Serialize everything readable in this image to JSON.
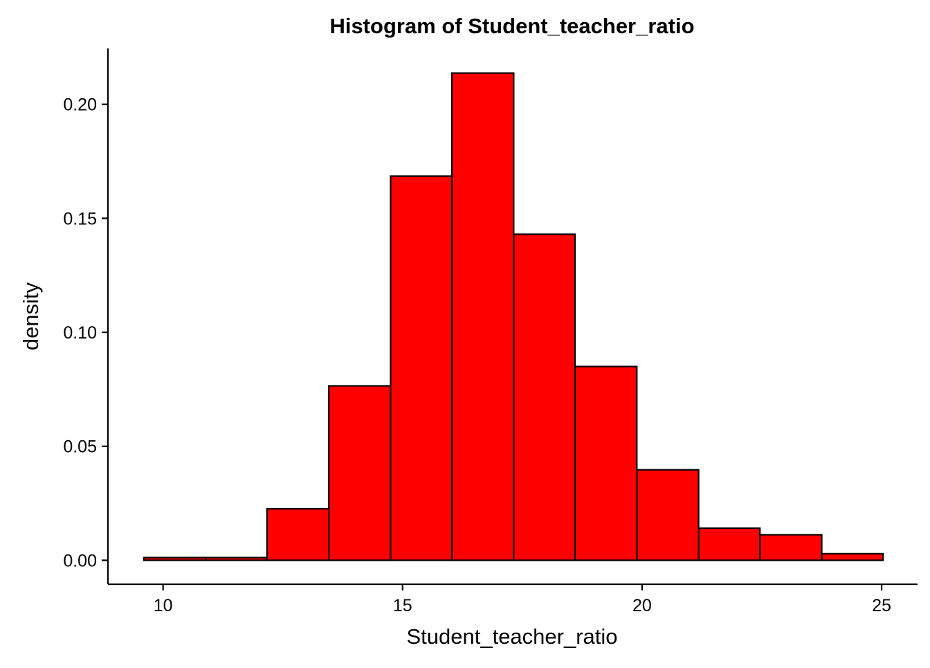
{
  "colors": {
    "bar_fill": "#FF0000",
    "bar_stroke": "#000000",
    "axis": "#000000",
    "background": "#FFFFFF"
  },
  "chart_data": {
    "type": "bar",
    "subtype": "histogram",
    "title": "Histogram of Student_teacher_ratio",
    "xlabel": "Student_teacher_ratio",
    "ylabel": "density",
    "xlim": [
      8.85,
      25.75
    ],
    "ylim": [
      -0.0105,
      0.2245
    ],
    "x_ticks": [
      10,
      15,
      20,
      25
    ],
    "x_tick_labels": [
      "10",
      "15",
      "20",
      "25"
    ],
    "y_ticks": [
      0.0,
      0.05,
      0.1,
      0.15,
      0.2
    ],
    "y_tick_labels": [
      "0.00",
      "0.05",
      "0.10",
      "0.15",
      "0.20"
    ],
    "grid": false,
    "legend": "none",
    "bins": [
      {
        "x0": 9.6,
        "x1": 10.89,
        "density": 0.0012
      },
      {
        "x0": 10.89,
        "x1": 12.17,
        "density": 0.0012
      },
      {
        "x0": 12.17,
        "x1": 13.46,
        "density": 0.0226
      },
      {
        "x0": 13.46,
        "x1": 14.75,
        "density": 0.0765
      },
      {
        "x0": 14.75,
        "x1": 16.03,
        "density": 0.1685
      },
      {
        "x0": 16.03,
        "x1": 17.32,
        "density": 0.2137
      },
      {
        "x0": 17.32,
        "x1": 18.6,
        "density": 0.143
      },
      {
        "x0": 18.6,
        "x1": 19.89,
        "density": 0.085
      },
      {
        "x0": 19.89,
        "x1": 21.18,
        "density": 0.0397
      },
      {
        "x0": 21.18,
        "x1": 22.46,
        "density": 0.0141
      },
      {
        "x0": 22.46,
        "x1": 23.75,
        "density": 0.0112
      },
      {
        "x0": 23.75,
        "x1": 25.03,
        "density": 0.0029
      }
    ]
  }
}
